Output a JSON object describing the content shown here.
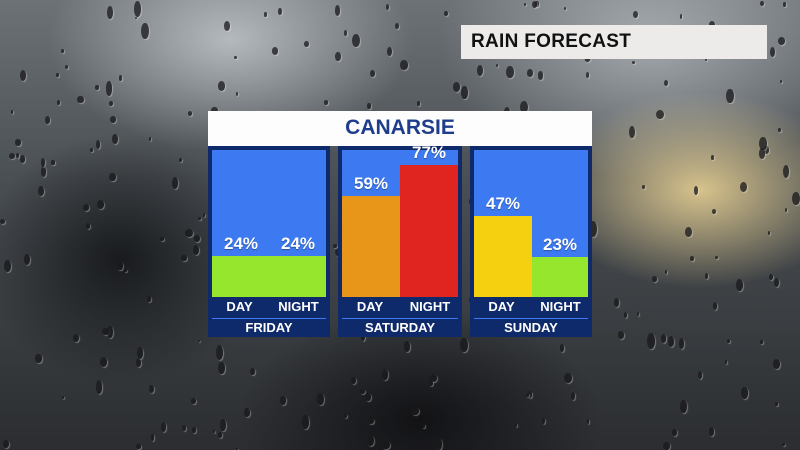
{
  "header": {
    "title": "RAIN FORECAST"
  },
  "location": "CANARSIE",
  "chart_data": {
    "type": "bar",
    "title": "CANARSIE",
    "ylim": [
      0,
      100
    ],
    "groups": [
      {
        "day": "FRIDAY",
        "bars": [
          {
            "label": "DAY",
            "value": 24,
            "text": "24%",
            "color": "#95e62c"
          },
          {
            "label": "NIGHT",
            "value": 24,
            "text": "24%",
            "color": "#95e62c"
          }
        ]
      },
      {
        "day": "SATURDAY",
        "bars": [
          {
            "label": "DAY",
            "value": 59,
            "text": "59%",
            "color": "#e8961a"
          },
          {
            "label": "NIGHT",
            "value": 77,
            "text": "77%",
            "color": "#e0241f"
          }
        ]
      },
      {
        "day": "SUNDAY",
        "bars": [
          {
            "label": "DAY",
            "value": 47,
            "text": "47%",
            "color": "#f5d010"
          },
          {
            "label": "NIGHT",
            "value": 23,
            "text": "23%",
            "color": "#95e62c"
          }
        ]
      }
    ]
  }
}
